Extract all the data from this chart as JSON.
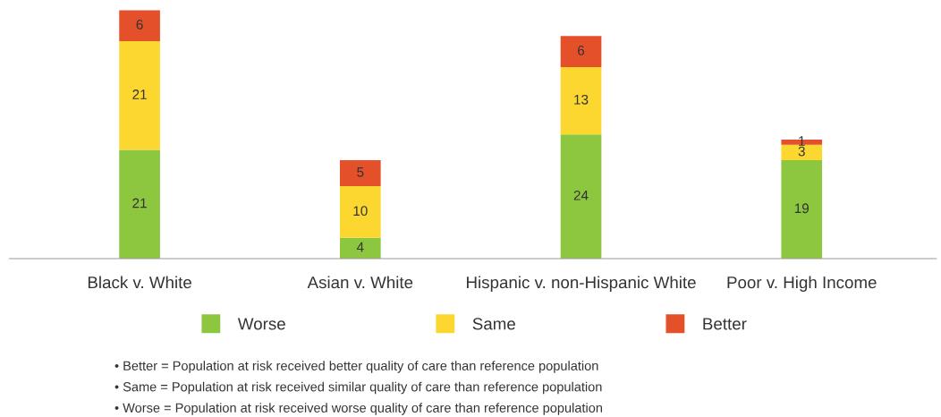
{
  "chart_data": {
    "type": "bar",
    "stacked": true,
    "data_labels": true,
    "grid": false,
    "legend": "bottom",
    "categories": [
      "Black v. White",
      "Asian v. White",
      "Hispanic v. non-Hispanic White",
      "Poor v. High Income"
    ],
    "series": [
      {
        "name": "Worse",
        "color": "#8dc63f",
        "values": [
          21,
          4,
          24,
          19
        ]
      },
      {
        "name": "Same",
        "color": "#fbd72f",
        "values": [
          21,
          10,
          13,
          3
        ]
      },
      {
        "name": "Better",
        "color": "#e4502a",
        "values": [
          6,
          5,
          6,
          1
        ]
      }
    ],
    "annotations": [
      "• Better = Population at risk received better quality of care than reference population",
      "• Same = Population at risk received similar quality of care than reference population",
      "• Worse = Population at risk received worse quality of care than reference population"
    ]
  }
}
